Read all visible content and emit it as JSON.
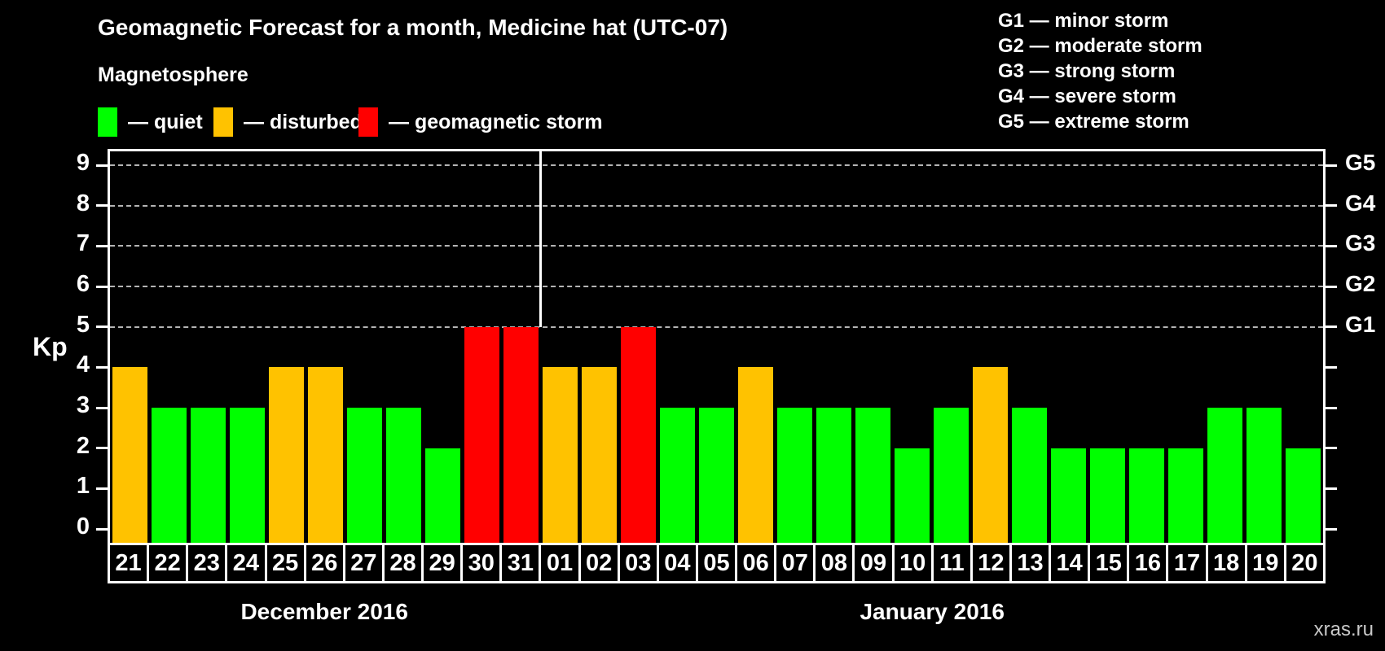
{
  "header": {
    "title": "Geomagnetic Forecast for a month, Medicine hat (UTC-07)",
    "subtitle": "Magnetosphere"
  },
  "legend": {
    "items": [
      {
        "name": "quiet",
        "label": "— quiet",
        "color": "#00ff00"
      },
      {
        "name": "disturbed",
        "label": "— disturbed",
        "color": "#ffc200"
      },
      {
        "name": "storm",
        "label": "— geomagnetic storm",
        "color": "#ff0000"
      }
    ]
  },
  "storm_scale_legend": {
    "items": [
      {
        "code": "G1",
        "label": "G1 — minor storm"
      },
      {
        "code": "G2",
        "label": "G2 — moderate storm"
      },
      {
        "code": "G3",
        "label": "G3 — strong storm"
      },
      {
        "code": "G4",
        "label": "G4 — severe storm"
      },
      {
        "code": "G5",
        "label": "G5 — extreme storm"
      }
    ]
  },
  "watermark": "xras.ru",
  "chart_data": {
    "type": "bar",
    "title": "Geomagnetic Forecast for a month, Medicine hat (UTC-07)",
    "ylabel": "Kp",
    "ylim": [
      0,
      9
    ],
    "yticks": [
      0,
      1,
      2,
      3,
      4,
      5,
      6,
      7,
      8,
      9
    ],
    "gridlines": [
      5,
      6,
      7,
      8,
      9
    ],
    "grid": "dashed-horizontal-at-storm-levels",
    "right_axis": [
      {
        "kp": 5,
        "label": "G1"
      },
      {
        "kp": 6,
        "label": "G2"
      },
      {
        "kp": 7,
        "label": "G3"
      },
      {
        "kp": 8,
        "label": "G4"
      },
      {
        "kp": 9,
        "label": "G5"
      }
    ],
    "status_colors": {
      "quiet": "#00ff00",
      "disturbed": "#ffc200",
      "storm": "#ff0000"
    },
    "groups": [
      {
        "month_label": "December 2016",
        "bars": [
          {
            "day": "21",
            "kp": 4,
            "status": "disturbed"
          },
          {
            "day": "22",
            "kp": 3,
            "status": "quiet"
          },
          {
            "day": "23",
            "kp": 3,
            "status": "quiet"
          },
          {
            "day": "24",
            "kp": 3,
            "status": "quiet"
          },
          {
            "day": "25",
            "kp": 4,
            "status": "disturbed"
          },
          {
            "day": "26",
            "kp": 4,
            "status": "disturbed"
          },
          {
            "day": "27",
            "kp": 3,
            "status": "quiet"
          },
          {
            "day": "28",
            "kp": 3,
            "status": "quiet"
          },
          {
            "day": "29",
            "kp": 2,
            "status": "quiet"
          },
          {
            "day": "30",
            "kp": 5,
            "status": "storm"
          },
          {
            "day": "31",
            "kp": 5,
            "status": "storm"
          }
        ]
      },
      {
        "month_label": "January 2016",
        "bars": [
          {
            "day": "01",
            "kp": 4,
            "status": "disturbed"
          },
          {
            "day": "02",
            "kp": 4,
            "status": "disturbed"
          },
          {
            "day": "03",
            "kp": 5,
            "status": "storm"
          },
          {
            "day": "04",
            "kp": 3,
            "status": "quiet"
          },
          {
            "day": "05",
            "kp": 3,
            "status": "quiet"
          },
          {
            "day": "06",
            "kp": 4,
            "status": "disturbed"
          },
          {
            "day": "07",
            "kp": 3,
            "status": "quiet"
          },
          {
            "day": "08",
            "kp": 3,
            "status": "quiet"
          },
          {
            "day": "09",
            "kp": 3,
            "status": "quiet"
          },
          {
            "day": "10",
            "kp": 2,
            "status": "quiet"
          },
          {
            "day": "11",
            "kp": 3,
            "status": "quiet"
          },
          {
            "day": "12",
            "kp": 4,
            "status": "disturbed"
          },
          {
            "day": "13",
            "kp": 3,
            "status": "quiet"
          },
          {
            "day": "14",
            "kp": 2,
            "status": "quiet"
          },
          {
            "day": "15",
            "kp": 2,
            "status": "quiet"
          },
          {
            "day": "16",
            "kp": 2,
            "status": "quiet"
          },
          {
            "day": "17",
            "kp": 2,
            "status": "quiet"
          },
          {
            "day": "18",
            "kp": 3,
            "status": "quiet"
          },
          {
            "day": "19",
            "kp": 3,
            "status": "quiet"
          },
          {
            "day": "20",
            "kp": 2,
            "status": "quiet"
          }
        ]
      }
    ]
  }
}
